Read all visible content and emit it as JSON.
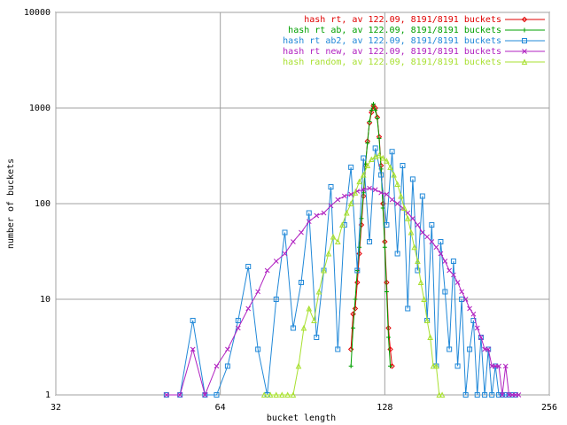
{
  "chart_data": {
    "type": "line",
    "xlabel": "bucket length",
    "ylabel": "number of buckets",
    "xlim": [
      32,
      256
    ],
    "ylim": [
      1,
      10000
    ],
    "xticks": [
      32,
      64,
      128,
      256
    ],
    "yticks": [
      1,
      10,
      100,
      1000,
      10000
    ],
    "log_x": true,
    "log_y": true,
    "grid": true,
    "legend": "top-right",
    "series": [
      {
        "name": "hash rt, av 122.09, 8191/8191 buckets",
        "color": "#e00000",
        "marker": "diamond",
        "x": [
          111,
          112,
          113,
          114,
          115,
          116,
          117,
          118,
          119,
          120,
          121,
          122,
          123,
          124,
          125,
          126,
          127,
          128,
          129,
          130,
          131,
          132
        ],
        "values": [
          3,
          7,
          8,
          15,
          30,
          60,
          120,
          250,
          450,
          700,
          900,
          1050,
          1000,
          800,
          500,
          250,
          100,
          40,
          15,
          5,
          3,
          2
        ]
      },
      {
        "name": "hash rt ab, av 122.09, 8191/8191 buckets",
        "color": "#00a000",
        "marker": "plus",
        "x": [
          111,
          112,
          113,
          114,
          115,
          116,
          117,
          118,
          119,
          120,
          121,
          122,
          123,
          124,
          125,
          126,
          127,
          128,
          129,
          130,
          131
        ],
        "values": [
          2,
          5,
          10,
          20,
          35,
          70,
          130,
          260,
          430,
          720,
          950,
          1100,
          950,
          780,
          480,
          230,
          90,
          35,
          12,
          4,
          2
        ]
      },
      {
        "name": "hash rt ab2, av 122.09, 8191/8191 buckets",
        "color": "#2088d8",
        "marker": "square",
        "x": [
          51,
          54,
          57,
          60,
          63,
          66,
          69,
          72,
          75,
          78,
          81,
          84,
          87,
          90,
          93,
          96,
          99,
          102,
          105,
          108,
          111,
          114,
          117,
          120,
          123,
          126,
          129,
          132,
          135,
          138,
          141,
          144,
          147,
          150,
          153,
          156,
          159,
          162,
          165,
          168,
          171,
          174,
          177,
          180,
          183,
          186,
          189,
          192,
          195,
          198,
          201,
          204,
          207,
          210,
          213,
          216,
          219,
          222
        ],
        "values": [
          1,
          1,
          6,
          1,
          1,
          2,
          6,
          22,
          3,
          1,
          10,
          50,
          5,
          15,
          80,
          4,
          20,
          150,
          3,
          60,
          240,
          20,
          300,
          40,
          380,
          200,
          60,
          350,
          30,
          250,
          8,
          180,
          20,
          120,
          6,
          60,
          2,
          40,
          12,
          3,
          25,
          2,
          10,
          1,
          3,
          6,
          1,
          4,
          1,
          3,
          1,
          2,
          1,
          1,
          1,
          1,
          1,
          1
        ]
      },
      {
        "name": "hash rt new, av 122.09, 8191/8191 buckets",
        "color": "#b020c0",
        "marker": "cross",
        "x": [
          51,
          54,
          57,
          60,
          63,
          66,
          69,
          72,
          75,
          78,
          81,
          84,
          87,
          90,
          93,
          96,
          99,
          102,
          105,
          108,
          111,
          114,
          117,
          120,
          123,
          126,
          129,
          132,
          135,
          138,
          141,
          144,
          147,
          150,
          153,
          156,
          159,
          162,
          165,
          168,
          171,
          174,
          177,
          180,
          183,
          186,
          189,
          192,
          195,
          198,
          201,
          204,
          207,
          210,
          213,
          216,
          219,
          222,
          225
        ],
        "values": [
          1,
          1,
          3,
          1,
          2,
          3,
          5,
          8,
          12,
          20,
          25,
          30,
          40,
          50,
          65,
          75,
          80,
          95,
          110,
          120,
          125,
          135,
          140,
          145,
          140,
          130,
          125,
          110,
          100,
          90,
          80,
          70,
          60,
          50,
          45,
          40,
          35,
          30,
          25,
          20,
          18,
          15,
          12,
          10,
          8,
          7,
          5,
          4,
          3,
          3,
          2,
          2,
          2,
          1,
          2,
          1,
          1,
          1,
          1
        ]
      },
      {
        "name": "hash random, av 122.09, 8191/8191 buckets",
        "color": "#a8e030",
        "marker": "triangle",
        "x": [
          77,
          79,
          81,
          83,
          85,
          87,
          89,
          91,
          93,
          95,
          97,
          99,
          101,
          103,
          105,
          107,
          109,
          111,
          113,
          115,
          117,
          119,
          121,
          123,
          125,
          127,
          129,
          131,
          133,
          135,
          137,
          139,
          141,
          143,
          145,
          147,
          149,
          151,
          153,
          155,
          157,
          159,
          161,
          163
        ],
        "values": [
          1,
          1,
          1,
          1,
          1,
          1,
          2,
          5,
          8,
          6,
          12,
          20,
          30,
          45,
          40,
          60,
          80,
          100,
          130,
          170,
          200,
          250,
          290,
          310,
          320,
          300,
          280,
          240,
          200,
          160,
          120,
          90,
          70,
          50,
          35,
          25,
          15,
          10,
          6,
          4,
          2,
          2,
          1,
          1
        ]
      }
    ]
  }
}
